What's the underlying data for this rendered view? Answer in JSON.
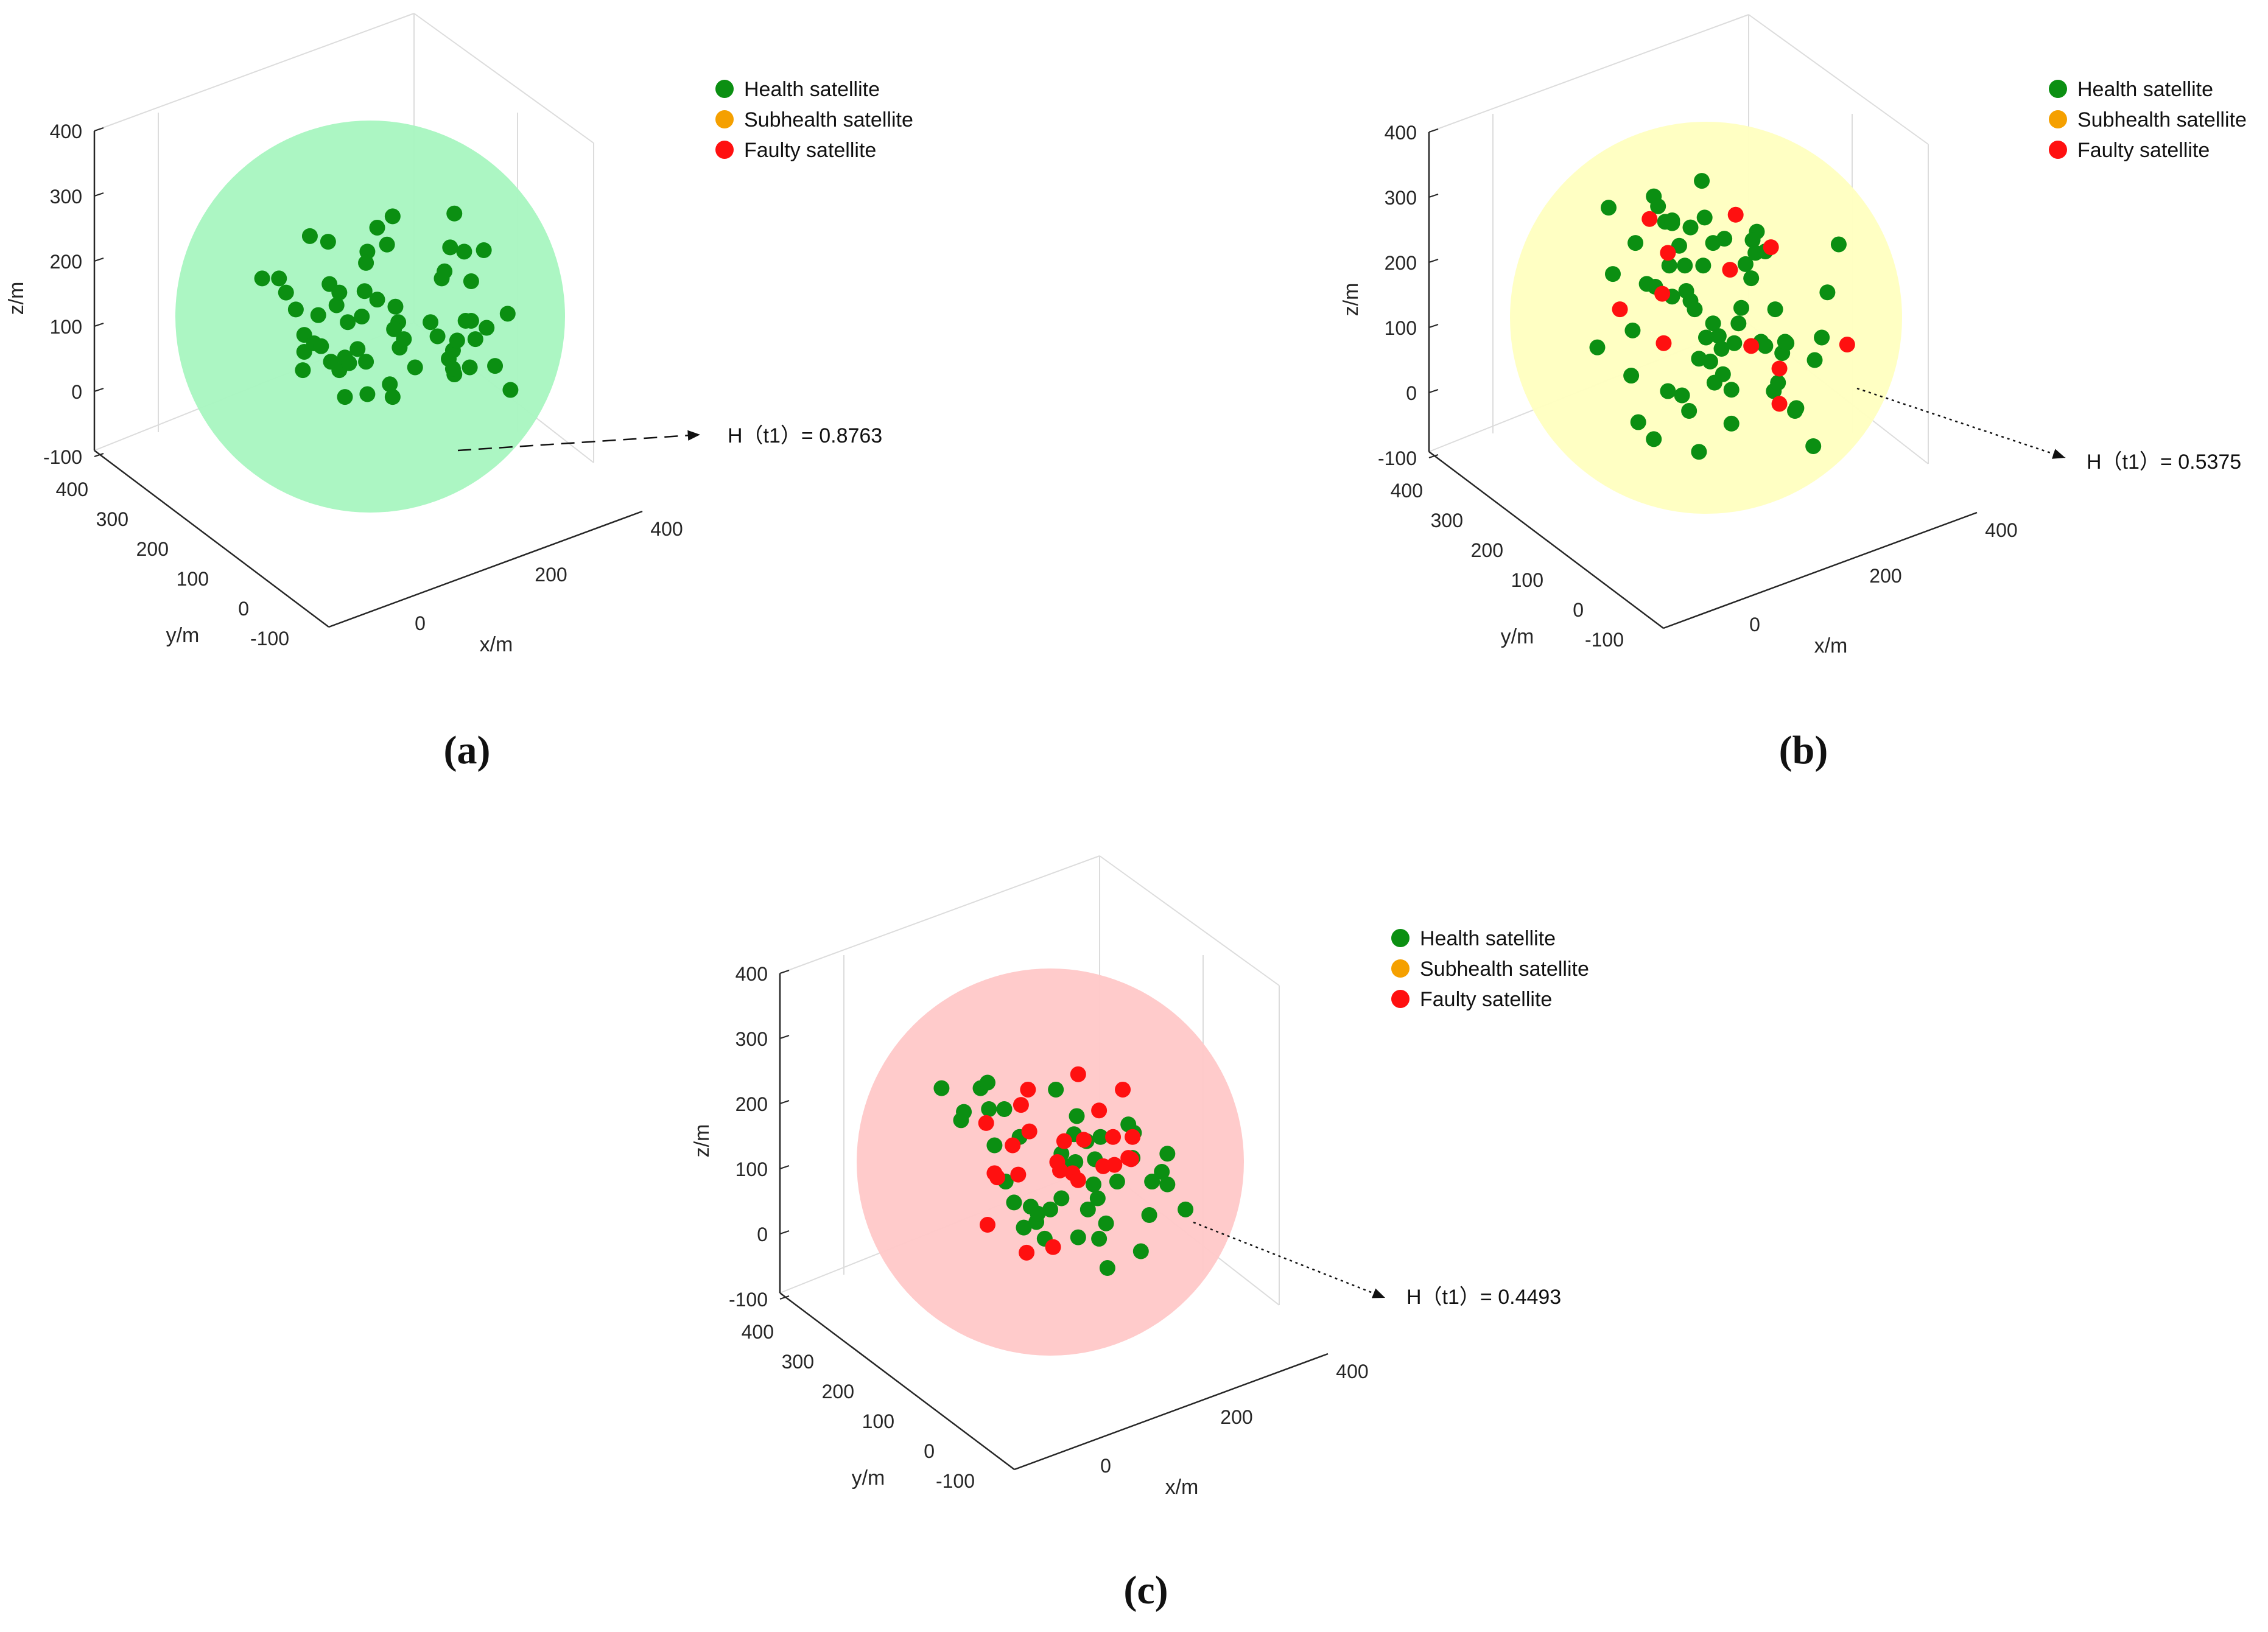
{
  "chart_data": [
    {
      "type": "scatter",
      "caption": "(a)",
      "xlabel": "x/m",
      "ylabel": "y/m",
      "zlabel": "z/m",
      "xticks": [
        "0",
        "200",
        "400"
      ],
      "yticks": [
        "-100",
        "0",
        "100",
        "200",
        "300",
        "400"
      ],
      "zticks": [
        "-100",
        "0",
        "100",
        "200",
        "300",
        "400"
      ],
      "sphere_color": "#a8f5c0",
      "legend": [
        {
          "label": "Health satellite",
          "color": "#0b8f12"
        },
        {
          "label": "Subhealth satellite",
          "color": "#f5a000"
        },
        {
          "label": "Faulty satellite",
          "color": "#ff1010"
        }
      ],
      "annotation": "H（t1）= 0.8763",
      "series": [
        {
          "name": "Health satellite",
          "points": [
            [
              -0.77,
              0.27
            ],
            [
              -0.65,
              0.27
            ],
            [
              -0.6,
              0.17
            ],
            [
              -0.53,
              0.05
            ],
            [
              -0.47,
              -0.13
            ],
            [
              -0.47,
              -0.25
            ],
            [
              -0.48,
              -0.38
            ],
            [
              -0.4,
              -0.19
            ],
            [
              -0.43,
              0.57
            ],
            [
              -0.37,
              0.01
            ],
            [
              -0.35,
              -0.21
            ],
            [
              -0.29,
              0.23
            ],
            [
              -0.3,
              0.53
            ],
            [
              -0.24,
              0.08
            ],
            [
              -0.22,
              0.17
            ],
            [
              -0.28,
              -0.32
            ],
            [
              -0.22,
              -0.38
            ],
            [
              -0.16,
              -0.04
            ],
            [
              -0.18,
              -0.29
            ],
            [
              -0.18,
              -0.57
            ],
            [
              -0.15,
              -0.33
            ],
            [
              -0.02,
              0.46
            ],
            [
              -0.03,
              0.38
            ],
            [
              -0.04,
              0.18
            ],
            [
              0.05,
              0.12
            ],
            [
              0.05,
              0.63
            ],
            [
              -0.06,
              0.0
            ],
            [
              -0.09,
              -0.23
            ],
            [
              -0.03,
              -0.32
            ],
            [
              -0.02,
              -0.55
            ],
            [
              0.16,
              0.71
            ],
            [
              0.12,
              0.51
            ],
            [
              0.18,
              0.07
            ],
            [
              0.2,
              -0.04
            ],
            [
              0.17,
              -0.09
            ],
            [
              0.21,
              -0.22
            ],
            [
              0.24,
              -0.16
            ],
            [
              0.14,
              -0.48
            ],
            [
              0.16,
              -0.57
            ],
            [
              0.32,
              -0.36
            ],
            [
              0.43,
              -0.04
            ],
            [
              0.48,
              -0.14
            ],
            [
              0.6,
              0.73
            ],
            [
              0.67,
              0.46
            ],
            [
              0.51,
              0.27
            ],
            [
              0.53,
              0.32
            ],
            [
              0.59,
              -0.24
            ],
            [
              0.62,
              -0.17
            ],
            [
              0.6,
              -0.41
            ],
            [
              0.72,
              -0.03
            ],
            [
              0.72,
              0.25
            ],
            [
              0.83,
              -0.08
            ],
            [
              0.68,
              -0.03
            ],
            [
              0.75,
              -0.16
            ],
            [
              0.56,
              -0.3
            ],
            [
              0.59,
              -0.37
            ],
            [
              0.89,
              -0.35
            ],
            [
              0.71,
              -0.36
            ],
            [
              0.81,
              0.47
            ],
            [
              0.57,
              0.49
            ],
            [
              0.98,
              0.02
            ],
            [
              1.0,
              -0.52
            ]
          ]
        },
        {
          "name": "Subhealth satellite",
          "points": []
        },
        {
          "name": "Faulty satellite",
          "points": []
        }
      ]
    },
    {
      "type": "scatter",
      "caption": "(b)",
      "xlabel": "x/m",
      "ylabel": "y/m",
      "zlabel": "z/m",
      "xticks": [
        "0",
        "200",
        "400"
      ],
      "yticks": [
        "-100",
        "0",
        "100",
        "200",
        "300",
        "400"
      ],
      "zticks": [
        "-100",
        "0",
        "100",
        "200",
        "300",
        "400"
      ],
      "sphere_color": "#ffffc0",
      "legend": [
        {
          "label": "Health satellite",
          "color": "#0b8f12"
        },
        {
          "label": "Subhealth satellite",
          "color": "#f5a000"
        },
        {
          "label": "Faulty satellite",
          "color": "#ff1010"
        }
      ],
      "annotation": "H（t1）= 0.5375",
      "series": [
        {
          "name": "Health satellite",
          "points": [
            [
              -0.53,
              -0.41
            ],
            [
              -0.5,
              0.53
            ],
            [
              -0.52,
              -0.09
            ],
            [
              -0.42,
              0.24
            ],
            [
              -0.37,
              0.86
            ],
            [
              -0.36,
              0.22
            ],
            [
              -0.34,
              0.79
            ],
            [
              -0.29,
              0.68
            ],
            [
              -0.24,
              0.67
            ],
            [
              -0.24,
              0.15
            ],
            [
              -0.24,
              0.69
            ],
            [
              -0.26,
              0.37
            ],
            [
              -0.19,
              0.51
            ],
            [
              -0.11,
              0.64
            ],
            [
              -0.15,
              0.37
            ],
            [
              -0.14,
              0.19
            ],
            [
              -0.11,
              0.12
            ],
            [
              -0.08,
              0.06
            ],
            [
              -0.03,
              0.97
            ],
            [
              -0.02,
              0.37
            ],
            [
              0.05,
              0.53
            ],
            [
              -0.01,
              0.71
            ],
            [
              0.05,
              -0.04
            ],
            [
              0.13,
              0.56
            ],
            [
              -0.05,
              -0.29
            ],
            [
              0.03,
              -0.31
            ],
            [
              0.06,
              -0.46
            ],
            [
              0.12,
              -0.4
            ],
            [
              0.18,
              -0.51
            ],
            [
              0.0,
              -0.14
            ],
            [
              0.09,
              -0.13
            ],
            [
              0.11,
              -0.22
            ],
            [
              0.18,
              -0.75
            ],
            [
              0.2,
              -0.18
            ],
            [
              0.23,
              -0.04
            ],
            [
              0.25,
              0.07
            ],
            [
              0.36,
              0.61
            ],
            [
              0.32,
              0.28
            ],
            [
              0.28,
              0.38
            ],
            [
              0.33,
              0.55
            ],
            [
              0.35,
              0.46
            ],
            [
              0.42,
              0.47
            ],
            [
              0.39,
              -0.17
            ],
            [
              0.57,
              -0.18
            ],
            [
              0.54,
              -0.25
            ],
            [
              0.48,
              -0.52
            ],
            [
              0.49,
              0.06
            ],
            [
              0.42,
              -0.2
            ],
            [
              0.56,
              -0.17
            ],
            [
              0.51,
              -0.46
            ],
            [
              0.64,
              -0.64
            ],
            [
              0.82,
              -0.14
            ],
            [
              0.77,
              -0.3
            ],
            [
              0.86,
              0.18
            ],
            [
              0.94,
              0.52
            ],
            [
              0.63,
              -0.66
            ],
            [
              0.76,
              -0.91
            ],
            [
              -0.77,
              -0.21
            ],
            [
              -0.69,
              0.78
            ],
            [
              -0.66,
              0.31
            ],
            [
              -0.48,
              -0.74
            ],
            [
              -0.27,
              -0.52
            ],
            [
              -0.37,
              -0.86
            ],
            [
              -0.12,
              -0.66
            ],
            [
              -0.17,
              -0.55
            ],
            [
              -0.05,
              -0.95
            ]
          ]
        },
        {
          "name": "Subhealth satellite",
          "points": []
        },
        {
          "name": "Faulty satellite",
          "points": [
            [
              -0.61,
              0.06
            ],
            [
              -0.4,
              0.7
            ],
            [
              -0.27,
              0.46
            ],
            [
              -0.31,
              0.17
            ],
            [
              -0.3,
              -0.18
            ],
            [
              0.21,
              0.73
            ],
            [
              0.17,
              0.34
            ],
            [
              0.32,
              -0.2
            ],
            [
              0.46,
              0.5
            ],
            [
              0.52,
              -0.36
            ],
            [
              0.52,
              -0.61
            ],
            [
              1.0,
              -0.19
            ]
          ]
        }
      ]
    },
    {
      "type": "scatter",
      "caption": "(c)",
      "xlabel": "x/m",
      "ylabel": "y/m",
      "zlabel": "z/m",
      "xticks": [
        "0",
        "200",
        "400"
      ],
      "yticks": [
        "-100",
        "0",
        "100",
        "200",
        "300",
        "400"
      ],
      "zticks": [
        "-100",
        "0",
        "100",
        "200",
        "300",
        "400"
      ],
      "sphere_color": "#ffc8c8",
      "legend": [
        {
          "label": "Health satellite",
          "color": "#0b8f12"
        },
        {
          "label": "Subhealth satellite",
          "color": "#f5a000"
        },
        {
          "label": "Faulty satellite",
          "color": "#ff1010"
        }
      ],
      "annotation": "H（t1）= 0.4493",
      "series": [
        {
          "name": "Health satellite",
          "points": [
            [
              -0.78,
              0.53
            ],
            [
              -0.64,
              0.3
            ],
            [
              -0.62,
              0.36
            ],
            [
              -0.5,
              0.53
            ],
            [
              -0.45,
              0.57
            ],
            [
              -0.44,
              0.38
            ],
            [
              -0.4,
              0.12
            ],
            [
              -0.33,
              0.38
            ],
            [
              -0.32,
              -0.14
            ],
            [
              -0.26,
              -0.29
            ],
            [
              -0.22,
              0.18
            ],
            [
              -0.19,
              -0.47
            ],
            [
              -0.14,
              -0.32
            ],
            [
              -0.1,
              -0.43
            ],
            [
              -0.09,
              -0.37
            ],
            [
              -0.04,
              -0.55
            ],
            [
              0.0,
              -0.34
            ],
            [
              0.04,
              0.52
            ],
            [
              0.08,
              0.06
            ],
            [
              0.08,
              -0.26
            ],
            [
              0.18,
              0.0
            ],
            [
              0.26,
              0.15
            ],
            [
              0.34,
              -0.26
            ],
            [
              0.36,
              0.18
            ],
            [
              0.4,
              -0.44
            ],
            [
              0.48,
              -0.14
            ],
            [
              0.56,
              0.27
            ],
            [
              0.6,
              0.21
            ],
            [
              0.59,
              0.03
            ],
            [
              0.65,
              -0.64
            ],
            [
              0.73,
              -0.14
            ],
            [
              0.84,
              0.06
            ],
            [
              0.71,
              -0.38
            ],
            [
              0.84,
              -0.16
            ],
            [
              0.97,
              -0.34
            ],
            [
              0.8,
              -0.07
            ],
            [
              0.35,
              -0.55
            ],
            [
              0.2,
              -0.54
            ],
            [
              0.27,
              -0.34
            ],
            [
              0.31,
              -0.16
            ],
            [
              0.41,
              -0.76
            ],
            [
              0.32,
              0.02
            ],
            [
              0.19,
              0.33
            ],
            [
              0.17,
              0.2
            ],
            [
              0.14,
              -0.03
            ]
          ]
        },
        {
          "name": "Subhealth satellite",
          "points": []
        },
        {
          "name": "Faulty satellite",
          "points": [
            [
              -0.46,
              0.28
            ],
            [
              -0.4,
              -0.08
            ],
            [
              -0.38,
              -0.11
            ],
            [
              -0.27,
              0.12
            ],
            [
              -0.23,
              -0.09
            ],
            [
              -0.21,
              0.41
            ],
            [
              -0.16,
              0.52
            ],
            [
              -0.45,
              -0.45
            ],
            [
              -0.15,
              0.22
            ],
            [
              -0.17,
              -0.65
            ],
            [
              0.02,
              -0.61
            ],
            [
              0.05,
              0.0
            ],
            [
              0.1,
              0.15
            ],
            [
              0.16,
              -0.08
            ],
            [
              0.2,
              -0.13
            ],
            [
              0.24,
              0.16
            ],
            [
              0.35,
              0.37
            ],
            [
              0.38,
              -0.03
            ],
            [
              0.45,
              0.18
            ],
            [
              0.46,
              -0.02
            ],
            [
              0.52,
              0.52
            ],
            [
              0.59,
              0.18
            ],
            [
              0.56,
              0.03
            ],
            [
              0.58,
              0.02
            ],
            [
              0.2,
              0.63
            ],
            [
              0.07,
              -0.06
            ]
          ]
        }
      ]
    }
  ]
}
